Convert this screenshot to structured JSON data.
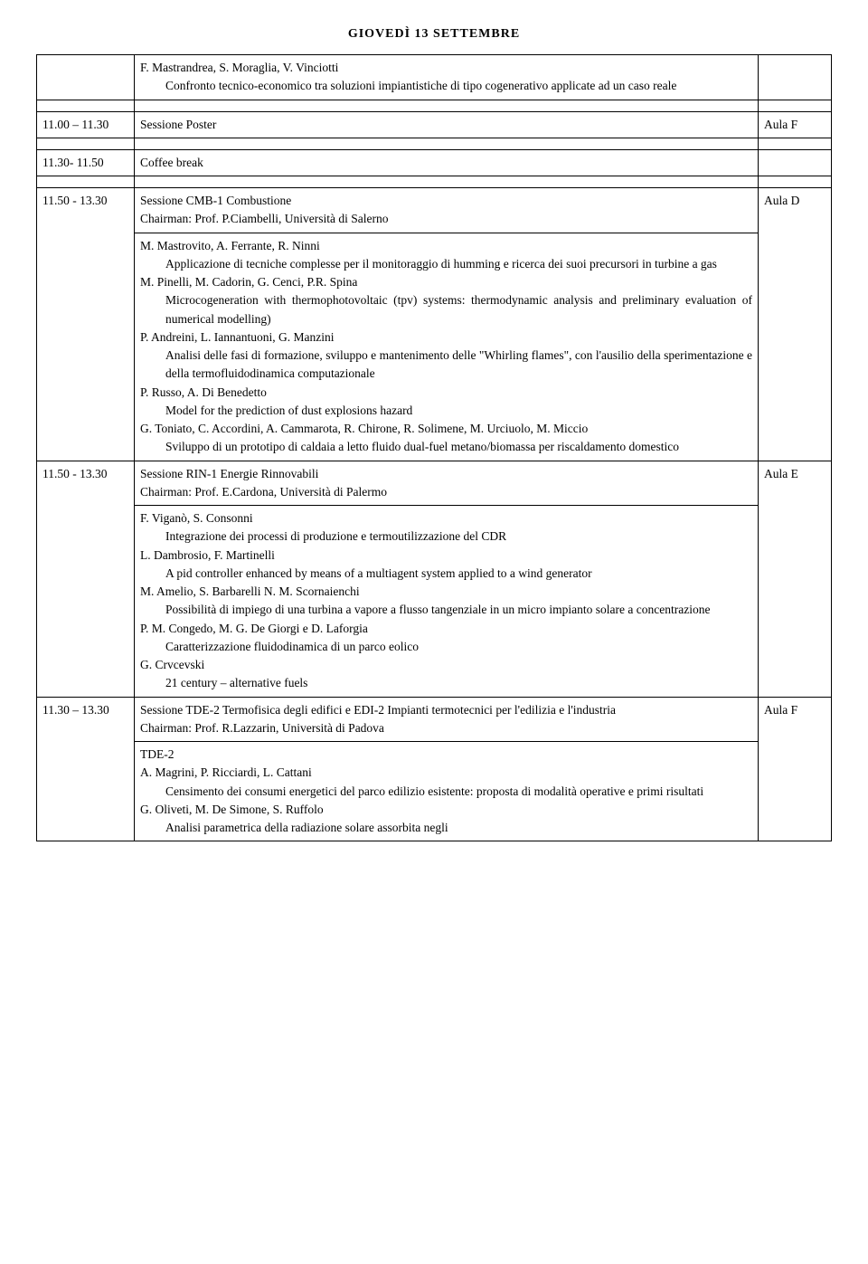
{
  "page_title": "GIOVEDÌ 13 SETTEMBRE",
  "rows": [
    {
      "time": "",
      "room": "",
      "authors0": "F. Mastrandrea, S. Moraglia, V. Vinciotti",
      "talk0": "Confronto tecnico-economico tra soluzioni impiantistiche di tipo cogenerativo applicate ad un caso reale"
    },
    {
      "time": "11.00 – 11.30",
      "session": "Sessione Poster",
      "room": "Aula F"
    },
    {
      "time": "11.30- 11.50",
      "session": "Coffee break",
      "room": ""
    },
    {
      "time": "11.50 - 13.30",
      "session": "Sessione CMB-1 Combustione",
      "chair": "Chairman: Prof. P.Ciambelli, Università di Salerno",
      "room": "Aula D",
      "talks": [
        {
          "authors": "M. Mastrovito, A. Ferrante, R. Ninni",
          "title": "Applicazione di tecniche complesse per il monitoraggio di humming e ricerca dei suoi precursori in turbine a gas"
        },
        {
          "authors": "M. Pinelli, M. Cadorin, G. Cenci, P.R. Spina",
          "title": "Microcogeneration with thermophotovoltaic (tpv) systems: thermodynamic analysis and preliminary evaluation of numerical modelling)"
        },
        {
          "authors": "P. Andreini, L. Iannantuoni, G. Manzini",
          "title": "Analisi delle fasi di formazione, sviluppo e mantenimento delle \"Whirling flames\", con l'ausilio della sperimentazione e della termofluidodinamica computazionale"
        },
        {
          "authors": "P. Russo, A. Di Benedetto",
          "title": "Model for the prediction of dust explosions hazard"
        },
        {
          "authors": "G. Toniato, C. Accordini, A. Cammarota, R. Chirone, R. Solimene, M. Urciuolo, M. Miccio",
          "title": "Sviluppo di un prototipo di caldaia a letto fluido dual-fuel metano/biomassa per riscaldamento domestico"
        }
      ]
    },
    {
      "time": "11.50 - 13.30",
      "session": "Sessione RIN-1 Energie Rinnovabili",
      "chair": "Chairman: Prof. E.Cardona, Università di Palermo",
      "room": "Aula E",
      "talks": [
        {
          "authors": "F. Viganò, S. Consonni",
          "title": "Integrazione dei processi di produzione e termoutilizzazione del CDR"
        },
        {
          "authors": "L. Dambrosio, F. Martinelli",
          "title": "A pid controller enhanced by means of a multiagent system applied to a wind generator"
        },
        {
          "authors": "M. Amelio, S. Barbarelli N. M. Scornaienchi",
          "title": "Possibilità di impiego di una turbina a vapore a flusso tangenziale in un micro impianto solare a concentrazione"
        },
        {
          "authors": "P. M. Congedo, M. G. De Giorgi e D. Laforgia",
          "title": "Caratterizzazione fluidodinamica di un parco eolico"
        },
        {
          "authors": "G. Crvcevski",
          "title": "21 century – alternative fuels"
        }
      ]
    },
    {
      "time": "11.30 – 13.30",
      "session": "Sessione TDE-2 Termofisica degli edifici e EDI-2 Impianti termotecnici per l'edilizia e l'industria",
      "chair": "Chairman: Prof. R.Lazzarin, Università di Padova",
      "room": "Aula F",
      "subhead": "TDE-2",
      "talks": [
        {
          "authors": "A. Magrini, P. Ricciardi, L. Cattani",
          "title": "Censimento dei consumi energetici del parco edilizio esistente: proposta di modalità operative e primi risultati"
        },
        {
          "authors": "G. Oliveti, M. De Simone, S. Ruffolo",
          "title": "Analisi parametrica della radiazione solare assorbita negli"
        }
      ]
    }
  ]
}
